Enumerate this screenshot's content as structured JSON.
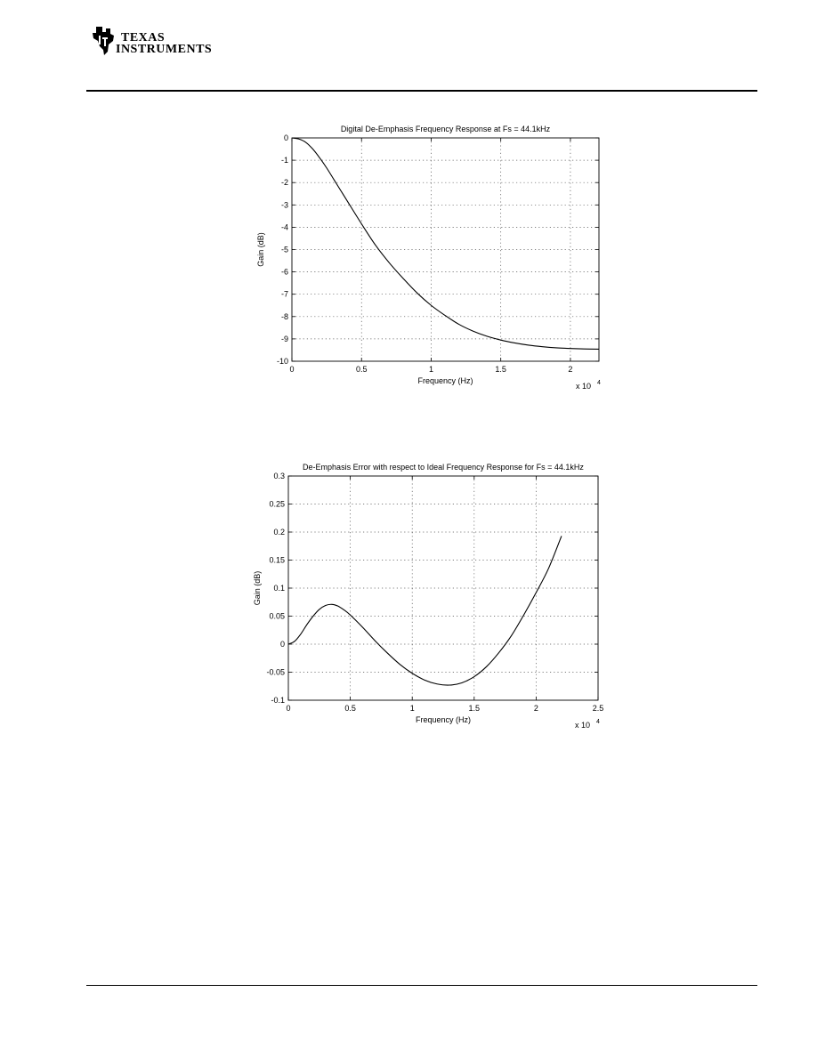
{
  "header": {
    "logo_text_line1": "Texas",
    "logo_text_line2": "Instruments"
  },
  "chart_data": [
    {
      "type": "line",
      "title": "Digital De-Emphasis Frequency Response at Fs = 44.1kHz",
      "xlabel": "Frequency (Hz)",
      "ylabel": "Gain (dB)",
      "x_multiplier": "x 10",
      "x_multiplier_exp": "4",
      "xlim": [
        0,
        22050
      ],
      "ylim": [
        -10,
        0
      ],
      "xticks": [
        0,
        5000,
        10000,
        15000,
        20000
      ],
      "xtick_labels": [
        "0",
        "0.5",
        "1",
        "1.5",
        "2"
      ],
      "yticks": [
        0,
        -1,
        -2,
        -3,
        -4,
        -5,
        -6,
        -7,
        -8,
        -9,
        -10
      ],
      "ytick_labels": [
        "0",
        "-1",
        "-2",
        "-3",
        "-4",
        "-5",
        "-6",
        "-7",
        "-8",
        "-9",
        "-10"
      ],
      "grid": true,
      "series": [
        {
          "x": [
            0,
            500,
            1000,
            1500,
            2000,
            2500,
            3000,
            3500,
            4000,
            5000,
            6000,
            7000,
            8000,
            9000,
            10000,
            11000,
            12000,
            13000,
            14000,
            15000,
            16000,
            17000,
            18000,
            19000,
            20000,
            21000,
            22050
          ],
          "y": [
            0,
            -0.05,
            -0.2,
            -0.5,
            -0.9,
            -1.35,
            -1.85,
            -2.35,
            -2.85,
            -3.85,
            -4.8,
            -5.6,
            -6.3,
            -6.95,
            -7.5,
            -7.95,
            -8.35,
            -8.65,
            -8.88,
            -9.05,
            -9.18,
            -9.28,
            -9.35,
            -9.4,
            -9.43,
            -9.45,
            -9.46
          ]
        }
      ]
    },
    {
      "type": "line",
      "title": "De-Emphasis Error with respect to Ideal Frequency Response for Fs = 44.1kHz",
      "xlabel": "Frequency (Hz)",
      "ylabel": "Gain (dB)",
      "x_multiplier": "x 10",
      "x_multiplier_exp": "4",
      "xlim": [
        0,
        25000
      ],
      "ylim": [
        -0.1,
        0.3
      ],
      "xticks": [
        0,
        5000,
        10000,
        15000,
        20000,
        25000
      ],
      "xtick_labels": [
        "0",
        "0.5",
        "1",
        "1.5",
        "2",
        "2.5"
      ],
      "yticks": [
        0.3,
        0.25,
        0.2,
        0.15,
        0.1,
        0.05,
        0,
        -0.05,
        -0.1
      ],
      "ytick_labels": [
        "0.3",
        "0.25",
        "0.2",
        "0.15",
        "0.1",
        "0.05",
        "0",
        "-0.05",
        "-0.1"
      ],
      "grid": true,
      "series": [
        {
          "x": [
            0,
            500,
            1000,
            1500,
            2000,
            2500,
            3000,
            3500,
            4000,
            4500,
            5000,
            6000,
            7000,
            8000,
            9000,
            10000,
            11000,
            12000,
            13000,
            14000,
            15000,
            16000,
            17000,
            18000,
            19000,
            20000,
            21000,
            22050
          ],
          "y": [
            0,
            0.005,
            0.018,
            0.035,
            0.05,
            0.062,
            0.069,
            0.071,
            0.068,
            0.061,
            0.052,
            0.03,
            0.006,
            -0.016,
            -0.036,
            -0.052,
            -0.064,
            -0.071,
            -0.073,
            -0.069,
            -0.058,
            -0.04,
            -0.015,
            0.015,
            0.052,
            0.092,
            0.135,
            0.193
          ]
        }
      ]
    }
  ]
}
